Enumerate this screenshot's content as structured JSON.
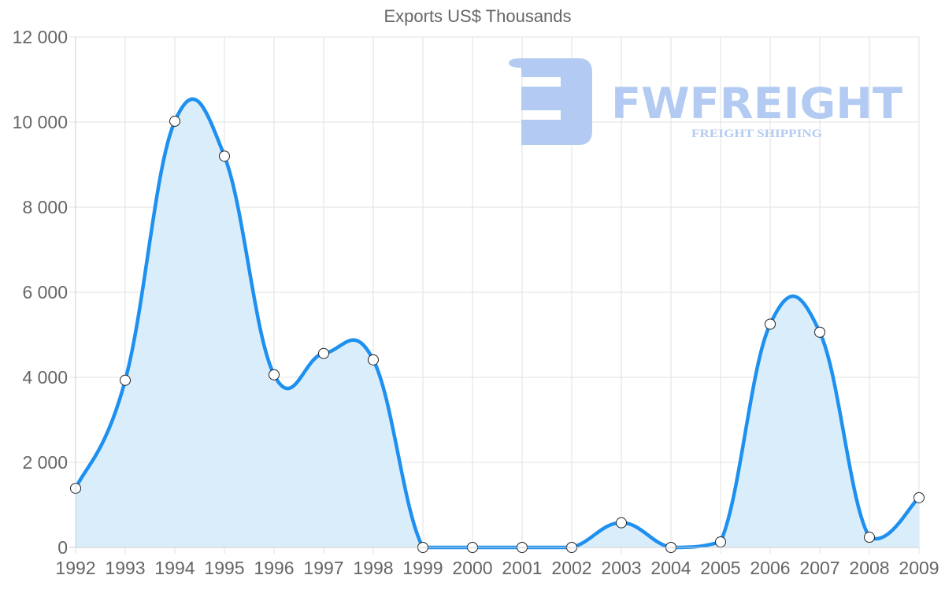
{
  "chart_data": {
    "type": "line",
    "title": "Exports US$ Thousands",
    "xlabel": "",
    "ylabel": "",
    "categories": [
      "1992",
      "1993",
      "1994",
      "1995",
      "1996",
      "1997",
      "1998",
      "1999",
      "2000",
      "2001",
      "2002",
      "2003",
      "2004",
      "2005",
      "2006",
      "2007",
      "2008",
      "2009"
    ],
    "series": [
      {
        "name": "Exports US$ Thousands",
        "values": [
          1390,
          3930,
          10020,
          9200,
          4060,
          4560,
          4410,
          0,
          0,
          0,
          0,
          580,
          0,
          130,
          5250,
          5060,
          240,
          1170
        ],
        "color": "#1e90f0",
        "fill": "#d8ecfb",
        "area": true
      }
    ],
    "ylim": [
      0,
      12000
    ],
    "yticks": [
      0,
      2000,
      4000,
      6000,
      8000,
      10000,
      12000
    ],
    "ytick_labels": [
      "0",
      "2 000",
      "4 000",
      "6 000",
      "8 000",
      "10 000",
      "12 000"
    ],
    "grid": true,
    "legend": "none"
  },
  "watermark": {
    "brand": "FWFREIGHT",
    "tagline": "FREIGHT SHIPPING",
    "color": "#b3cbf2"
  }
}
